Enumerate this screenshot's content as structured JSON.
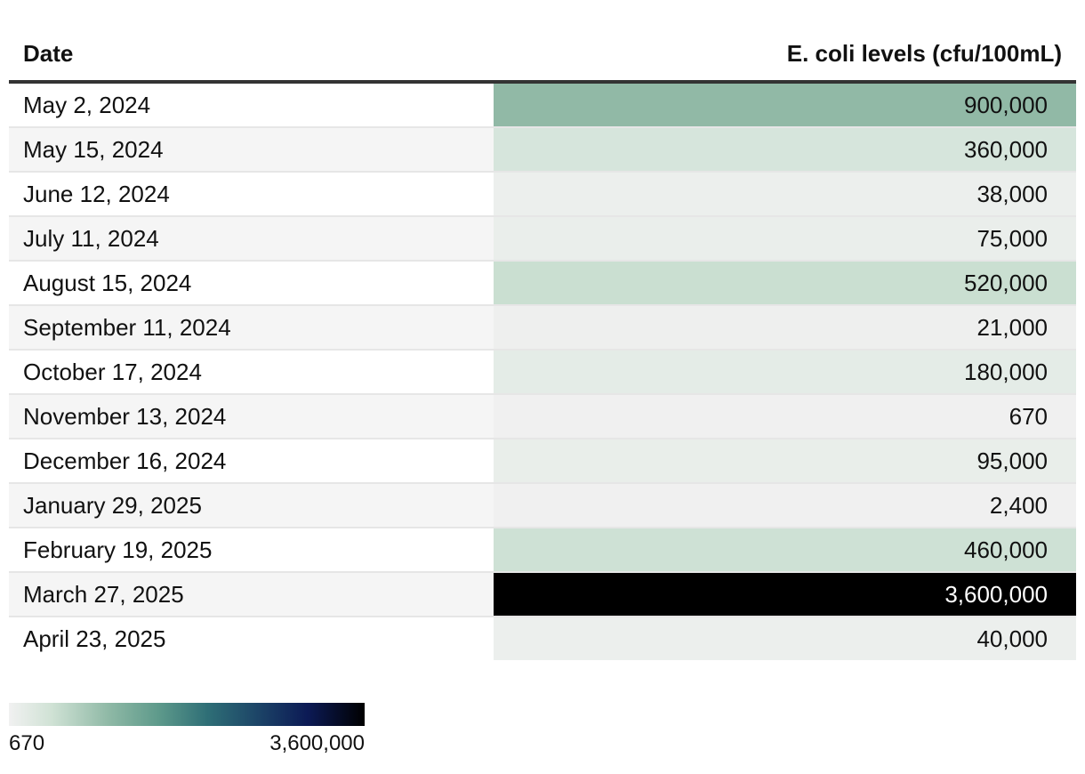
{
  "chart_data": {
    "type": "table",
    "columns": [
      "Date",
      "E. coli levels (cfu/100mL)"
    ],
    "rows": [
      {
        "date": "May 2, 2024",
        "value": 900000,
        "label": "900,000"
      },
      {
        "date": "May 15, 2024",
        "value": 360000,
        "label": "360,000"
      },
      {
        "date": "June 12, 2024",
        "value": 38000,
        "label": "38,000"
      },
      {
        "date": "July 11, 2024",
        "value": 75000,
        "label": "75,000"
      },
      {
        "date": "August 15, 2024",
        "value": 520000,
        "label": "520,000"
      },
      {
        "date": "September 11, 2024",
        "value": 21000,
        "label": "21,000"
      },
      {
        "date": "October 17, 2024",
        "value": 180000,
        "label": "180,000"
      },
      {
        "date": "November 13, 2024",
        "value": 670,
        "label": "670"
      },
      {
        "date": "December 16, 2024",
        "value": 95000,
        "label": "95,000"
      },
      {
        "date": "January 29, 2025",
        "value": 2400,
        "label": "2,400"
      },
      {
        "date": "February 19, 2025",
        "value": 460000,
        "label": "460,000"
      },
      {
        "date": "March 27, 2025",
        "value": 3600000,
        "label": "3,600,000"
      },
      {
        "date": "April 23, 2025",
        "value": 40000,
        "label": "40,000"
      }
    ],
    "color_scale": {
      "min": 670,
      "max": 3600000,
      "min_label": "670",
      "max_label": "3,600,000"
    }
  }
}
